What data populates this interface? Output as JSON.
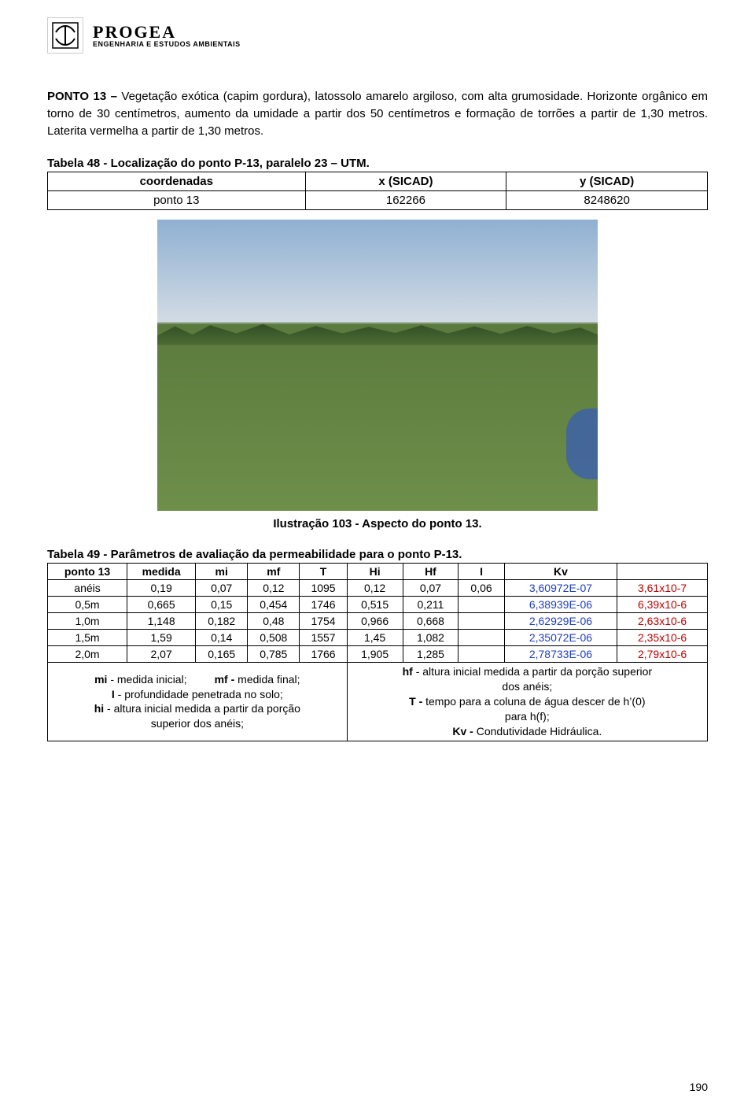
{
  "header": {
    "brand_name": "PROGEA",
    "brand_sub": "ENGENHARIA E ESTUDOS AMBIENTAIS"
  },
  "paragraph": {
    "lead": "PONTO 13 – ",
    "body": "Vegetação exótica (capim gordura), latossolo amarelo argiloso, com alta grumosidade. Horizonte orgânico em torno de 30 centímetros, aumento da umidade a partir dos 50 centímetros e formação de torrões a partir de 1,30 metros. Laterita vermelha a partir de 1,30 metros."
  },
  "table48": {
    "title": "Tabela 48 - Localização do ponto P-13, paralelo 23 – UTM.",
    "headers": [
      "coordenadas",
      "x (SICAD)",
      "y (SICAD)"
    ],
    "row": [
      "ponto 13",
      "162266",
      "8248620"
    ]
  },
  "caption": "Ilustração 103 - Aspecto do ponto 13.",
  "table49": {
    "title": "Tabela 49 - Parâmetros de avaliação da permeabilidade para o ponto P-13.",
    "headers": [
      "ponto 13",
      "medida",
      "mi",
      "mf",
      "T",
      "Hi",
      "Hf",
      "I",
      "Kv",
      ""
    ],
    "rows": [
      {
        "c": [
          "anéis",
          "0,19",
          "0,07",
          "0,12",
          "1095",
          "0,12",
          "0,07",
          "0,06"
        ],
        "kv": "3,60972E-07",
        "kv2": "3,61x10-7"
      },
      {
        "c": [
          "0,5m",
          "0,665",
          "0,15",
          "0,454",
          "1746",
          "0,515",
          "0,211",
          ""
        ],
        "kv": "6,38939E-06",
        "kv2": "6,39x10-6"
      },
      {
        "c": [
          "1,0m",
          "1,148",
          "0,182",
          "0,48",
          "1754",
          "0,966",
          "0,668",
          ""
        ],
        "kv": "2,62929E-06",
        "kv2": "2,63x10-6"
      },
      {
        "c": [
          "1,5m",
          "1,59",
          "0,14",
          "0,508",
          "1557",
          "1,45",
          "1,082",
          ""
        ],
        "kv": "2,35072E-06",
        "kv2": "2,35x10-6"
      },
      {
        "c": [
          "2,0m",
          "2,07",
          "0,165",
          "0,785",
          "1766",
          "1,905",
          "1,285",
          ""
        ],
        "kv": "2,78733E-06",
        "kv2": "2,79x10-6"
      }
    ],
    "footer_left_lines": [
      {
        "pre": "mi",
        "mid": " - medida inicial;          ",
        "bold": "mf - ",
        "post": "medida final;"
      },
      {
        "pre": "I",
        "post": " - profundidade penetrada no solo;"
      },
      {
        "pre": "hi",
        "post": " - altura inicial medida a partir da porção superior dos anéis;"
      }
    ],
    "footer_right_lines": [
      {
        "pre": "hf",
        "post": " - altura inicial medida a partir da porção superior dos anéis;"
      },
      {
        "pre": "T -",
        "post": " tempo para a coluna de água descer de h'(0) para h(f);"
      },
      {
        "pre": "Kv -",
        "post": " Condutividade Hidráulica."
      }
    ]
  },
  "colors": {
    "blue": "#1f3fbf",
    "red": "#c00000"
  },
  "page_number": "190"
}
